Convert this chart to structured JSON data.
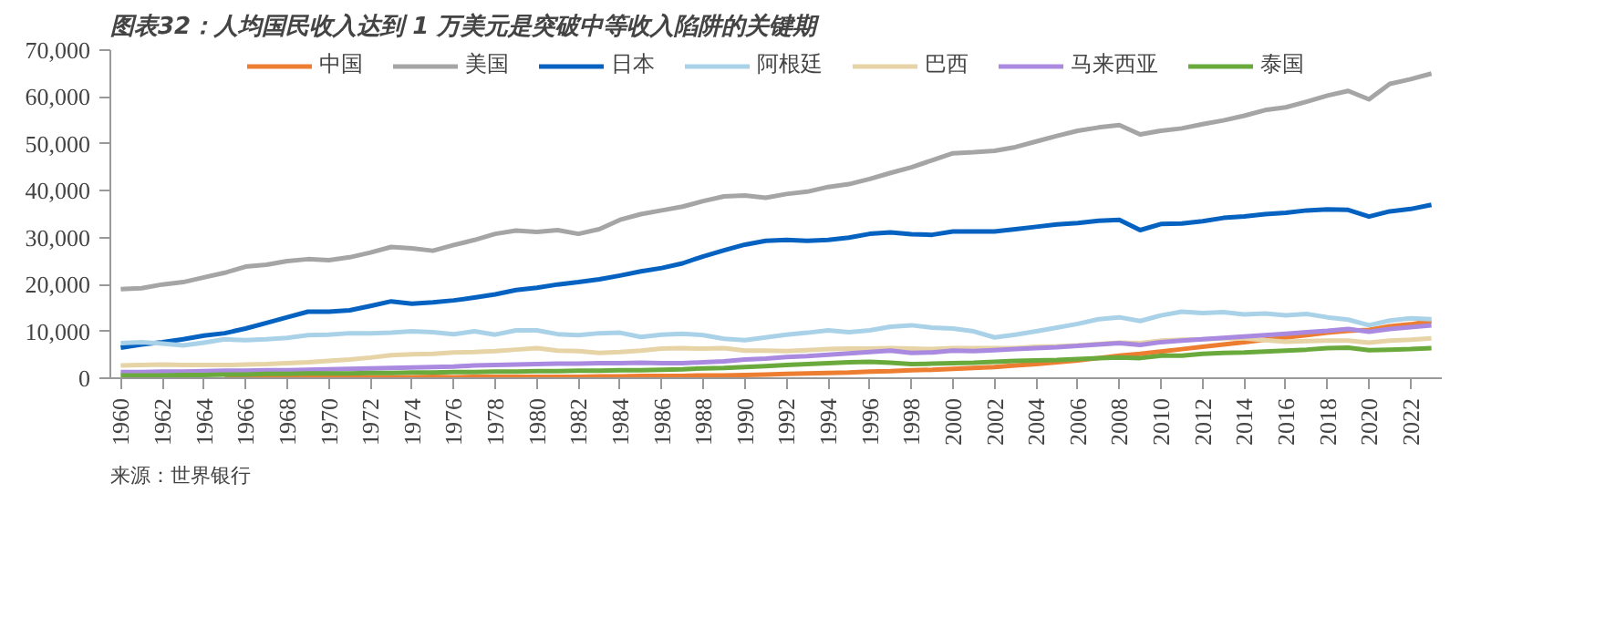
{
  "chart_data": {
    "type": "line",
    "title": "图表32：人均国民收入达到 1 万美元是突破中等收入陷阱的关键期",
    "annotations": [
      "来源：世界银行"
    ],
    "x": [
      1960,
      1961,
      1962,
      1963,
      1964,
      1965,
      1966,
      1967,
      1968,
      1969,
      1970,
      1971,
      1972,
      1973,
      1974,
      1975,
      1976,
      1977,
      1978,
      1979,
      1980,
      1981,
      1982,
      1983,
      1984,
      1985,
      1986,
      1987,
      1988,
      1989,
      1990,
      1991,
      1992,
      1993,
      1994,
      1995,
      1996,
      1997,
      1998,
      1999,
      2000,
      2001,
      2002,
      2003,
      2004,
      2005,
      2006,
      2007,
      2008,
      2009,
      2010,
      2011,
      2012,
      2013,
      2014,
      2015,
      2016,
      2017,
      2018,
      2019,
      2020,
      2021,
      2022,
      2023
    ],
    "xlim": [
      1959.5,
      2023.5
    ],
    "xticks": [
      1960,
      1962,
      1964,
      1966,
      1968,
      1970,
      1972,
      1974,
      1976,
      1978,
      1980,
      1982,
      1984,
      1986,
      1988,
      1990,
      1992,
      1994,
      1996,
      1998,
      2000,
      2002,
      2004,
      2006,
      2008,
      2010,
      2012,
      2014,
      2016,
      2018,
      2020,
      2022
    ],
    "ylim": [
      0,
      70000
    ],
    "yticks": [
      {
        "value": 0,
        "label": "0"
      },
      {
        "value": 10000,
        "label": "10,000"
      },
      {
        "value": 20000,
        "label": "20,000"
      },
      {
        "value": 30000,
        "label": "30,000"
      },
      {
        "value": 40000,
        "label": "40,000"
      },
      {
        "value": 50000,
        "label": "50,000"
      },
      {
        "value": 60000,
        "label": "60,000"
      },
      {
        "value": 70000,
        "label": "70,000"
      }
    ],
    "legend": "top",
    "grid": false,
    "line_style": "solid",
    "marker": "none",
    "series": [
      {
        "name": "中国",
        "color": "#ed7d31",
        "values": [
          null,
          null,
          null,
          null,
          null,
          200,
          200,
          200,
          200,
          200,
          200,
          200,
          200,
          200,
          200,
          300,
          200,
          300,
          300,
          300,
          300,
          300,
          300,
          400,
          400,
          500,
          500,
          500,
          600,
          600,
          700,
          800,
          900,
          1000,
          1100,
          1200,
          1400,
          1500,
          1700,
          1800,
          2000,
          2200,
          2400,
          2700,
          3000,
          3400,
          3800,
          4300,
          4800,
          5200,
          5700,
          6200,
          6700,
          7200,
          7700,
          8200,
          8700,
          9200,
          9700,
          10100,
          10300,
          11100,
          11500,
          12200
        ]
      },
      {
        "name": "美国",
        "color": "#a5a5a5",
        "values": [
          19000,
          19200,
          20000,
          20500,
          21500,
          22500,
          23800,
          24200,
          25000,
          25400,
          25200,
          25800,
          26800,
          28000,
          27700,
          27200,
          28400,
          29500,
          30800,
          31500,
          31200,
          31600,
          30800,
          31800,
          33800,
          35000,
          35800,
          36600,
          37800,
          38800,
          39000,
          38500,
          39300,
          39800,
          40800,
          41400,
          42500,
          43800,
          45000,
          46500,
          48000,
          48200,
          48500,
          49300,
          50500,
          51700,
          52800,
          53500,
          54000,
          52000,
          52800,
          53300,
          54200,
          55000,
          56000,
          57200,
          57800,
          59000,
          60300,
          61300,
          59500,
          62800,
          63800,
          65000
        ]
      },
      {
        "name": "日本",
        "color": "#0562c1",
        "values": [
          6500,
          7200,
          7700,
          8300,
          9100,
          9600,
          10600,
          11800,
          13000,
          14200,
          14200,
          14500,
          15400,
          16400,
          15900,
          16200,
          16600,
          17200,
          17900,
          18800,
          19300,
          20000,
          20500,
          21100,
          21900,
          22800,
          23500,
          24500,
          26000,
          27300,
          28500,
          29300,
          29500,
          29300,
          29500,
          30000,
          30800,
          31100,
          30700,
          30600,
          31300,
          31300,
          31300,
          31800,
          32300,
          32800,
          33100,
          33600,
          33800,
          31600,
          32900,
          33000,
          33500,
          34200,
          34500,
          35000,
          35300,
          35800,
          36000,
          35900,
          34500,
          35600,
          36100,
          37000
        ]
      },
      {
        "name": "阿根廷",
        "color": "#a9d2e8",
        "values": [
          7500,
          7700,
          7400,
          7000,
          7600,
          8300,
          8100,
          8300,
          8600,
          9200,
          9300,
          9600,
          9600,
          9700,
          10000,
          9800,
          9400,
          10000,
          9300,
          10200,
          10200,
          9400,
          9200,
          9600,
          9700,
          8800,
          9300,
          9500,
          9200,
          8400,
          8100,
          8700,
          9300,
          9700,
          10200,
          9800,
          10200,
          11000,
          11300,
          10800,
          10600,
          10000,
          8700,
          9300,
          10000,
          10800,
          11600,
          12600,
          13000,
          12200,
          13400,
          14200,
          13900,
          14100,
          13600,
          13800,
          13400,
          13700,
          13000,
          12500,
          11300,
          12300,
          12800,
          12600
        ]
      },
      {
        "name": "巴西",
        "color": "#e6d3a6",
        "values": [
          2700,
          2800,
          2900,
          2800,
          2800,
          2800,
          2900,
          3000,
          3200,
          3400,
          3700,
          4000,
          4400,
          4900,
          5100,
          5200,
          5500,
          5600,
          5800,
          6100,
          6400,
          5900,
          5800,
          5400,
          5600,
          5900,
          6300,
          6400,
          6300,
          6400,
          5900,
          5900,
          5800,
          6000,
          6200,
          6300,
          6300,
          6400,
          6300,
          6200,
          6400,
          6400,
          6400,
          6400,
          6700,
          6800,
          7000,
          7300,
          7600,
          7500,
          8000,
          8200,
          8300,
          8500,
          8500,
          8100,
          7800,
          7900,
          8000,
          8000,
          7600,
          8000,
          8200,
          8500
        ]
      },
      {
        "name": "马来西亚",
        "color": "#a98ae0",
        "values": [
          1300,
          1300,
          1400,
          1400,
          1500,
          1600,
          1600,
          1700,
          1700,
          1800,
          1900,
          2000,
          2100,
          2200,
          2300,
          2400,
          2500,
          2700,
          2800,
          2900,
          3000,
          3100,
          3100,
          3200,
          3200,
          3300,
          3200,
          3200,
          3400,
          3600,
          4000,
          4200,
          4500,
          4700,
          5000,
          5300,
          5600,
          5900,
          5400,
          5500,
          5900,
          5800,
          6000,
          6200,
          6400,
          6600,
          6900,
          7200,
          7500,
          7100,
          7700,
          8000,
          8300,
          8600,
          8900,
          9200,
          9500,
          9800,
          10100,
          10500,
          9900,
          10500,
          10900,
          11300
        ]
      },
      {
        "name": "泰国",
        "color": "#6aaa3c",
        "values": [
          600,
          600,
          600,
          700,
          700,
          800,
          800,
          900,
          900,
          1000,
          1000,
          1000,
          1100,
          1100,
          1200,
          1200,
          1300,
          1300,
          1400,
          1400,
          1500,
          1500,
          1600,
          1600,
          1700,
          1700,
          1800,
          1900,
          2100,
          2200,
          2400,
          2600,
          2800,
          3000,
          3200,
          3400,
          3500,
          3300,
          3000,
          3100,
          3200,
          3300,
          3500,
          3700,
          3800,
          3900,
          4100,
          4300,
          4400,
          4300,
          4800,
          4800,
          5200,
          5400,
          5500,
          5700,
          5900,
          6100,
          6400,
          6500,
          6000,
          6100,
          6200,
          6400
        ]
      }
    ]
  }
}
